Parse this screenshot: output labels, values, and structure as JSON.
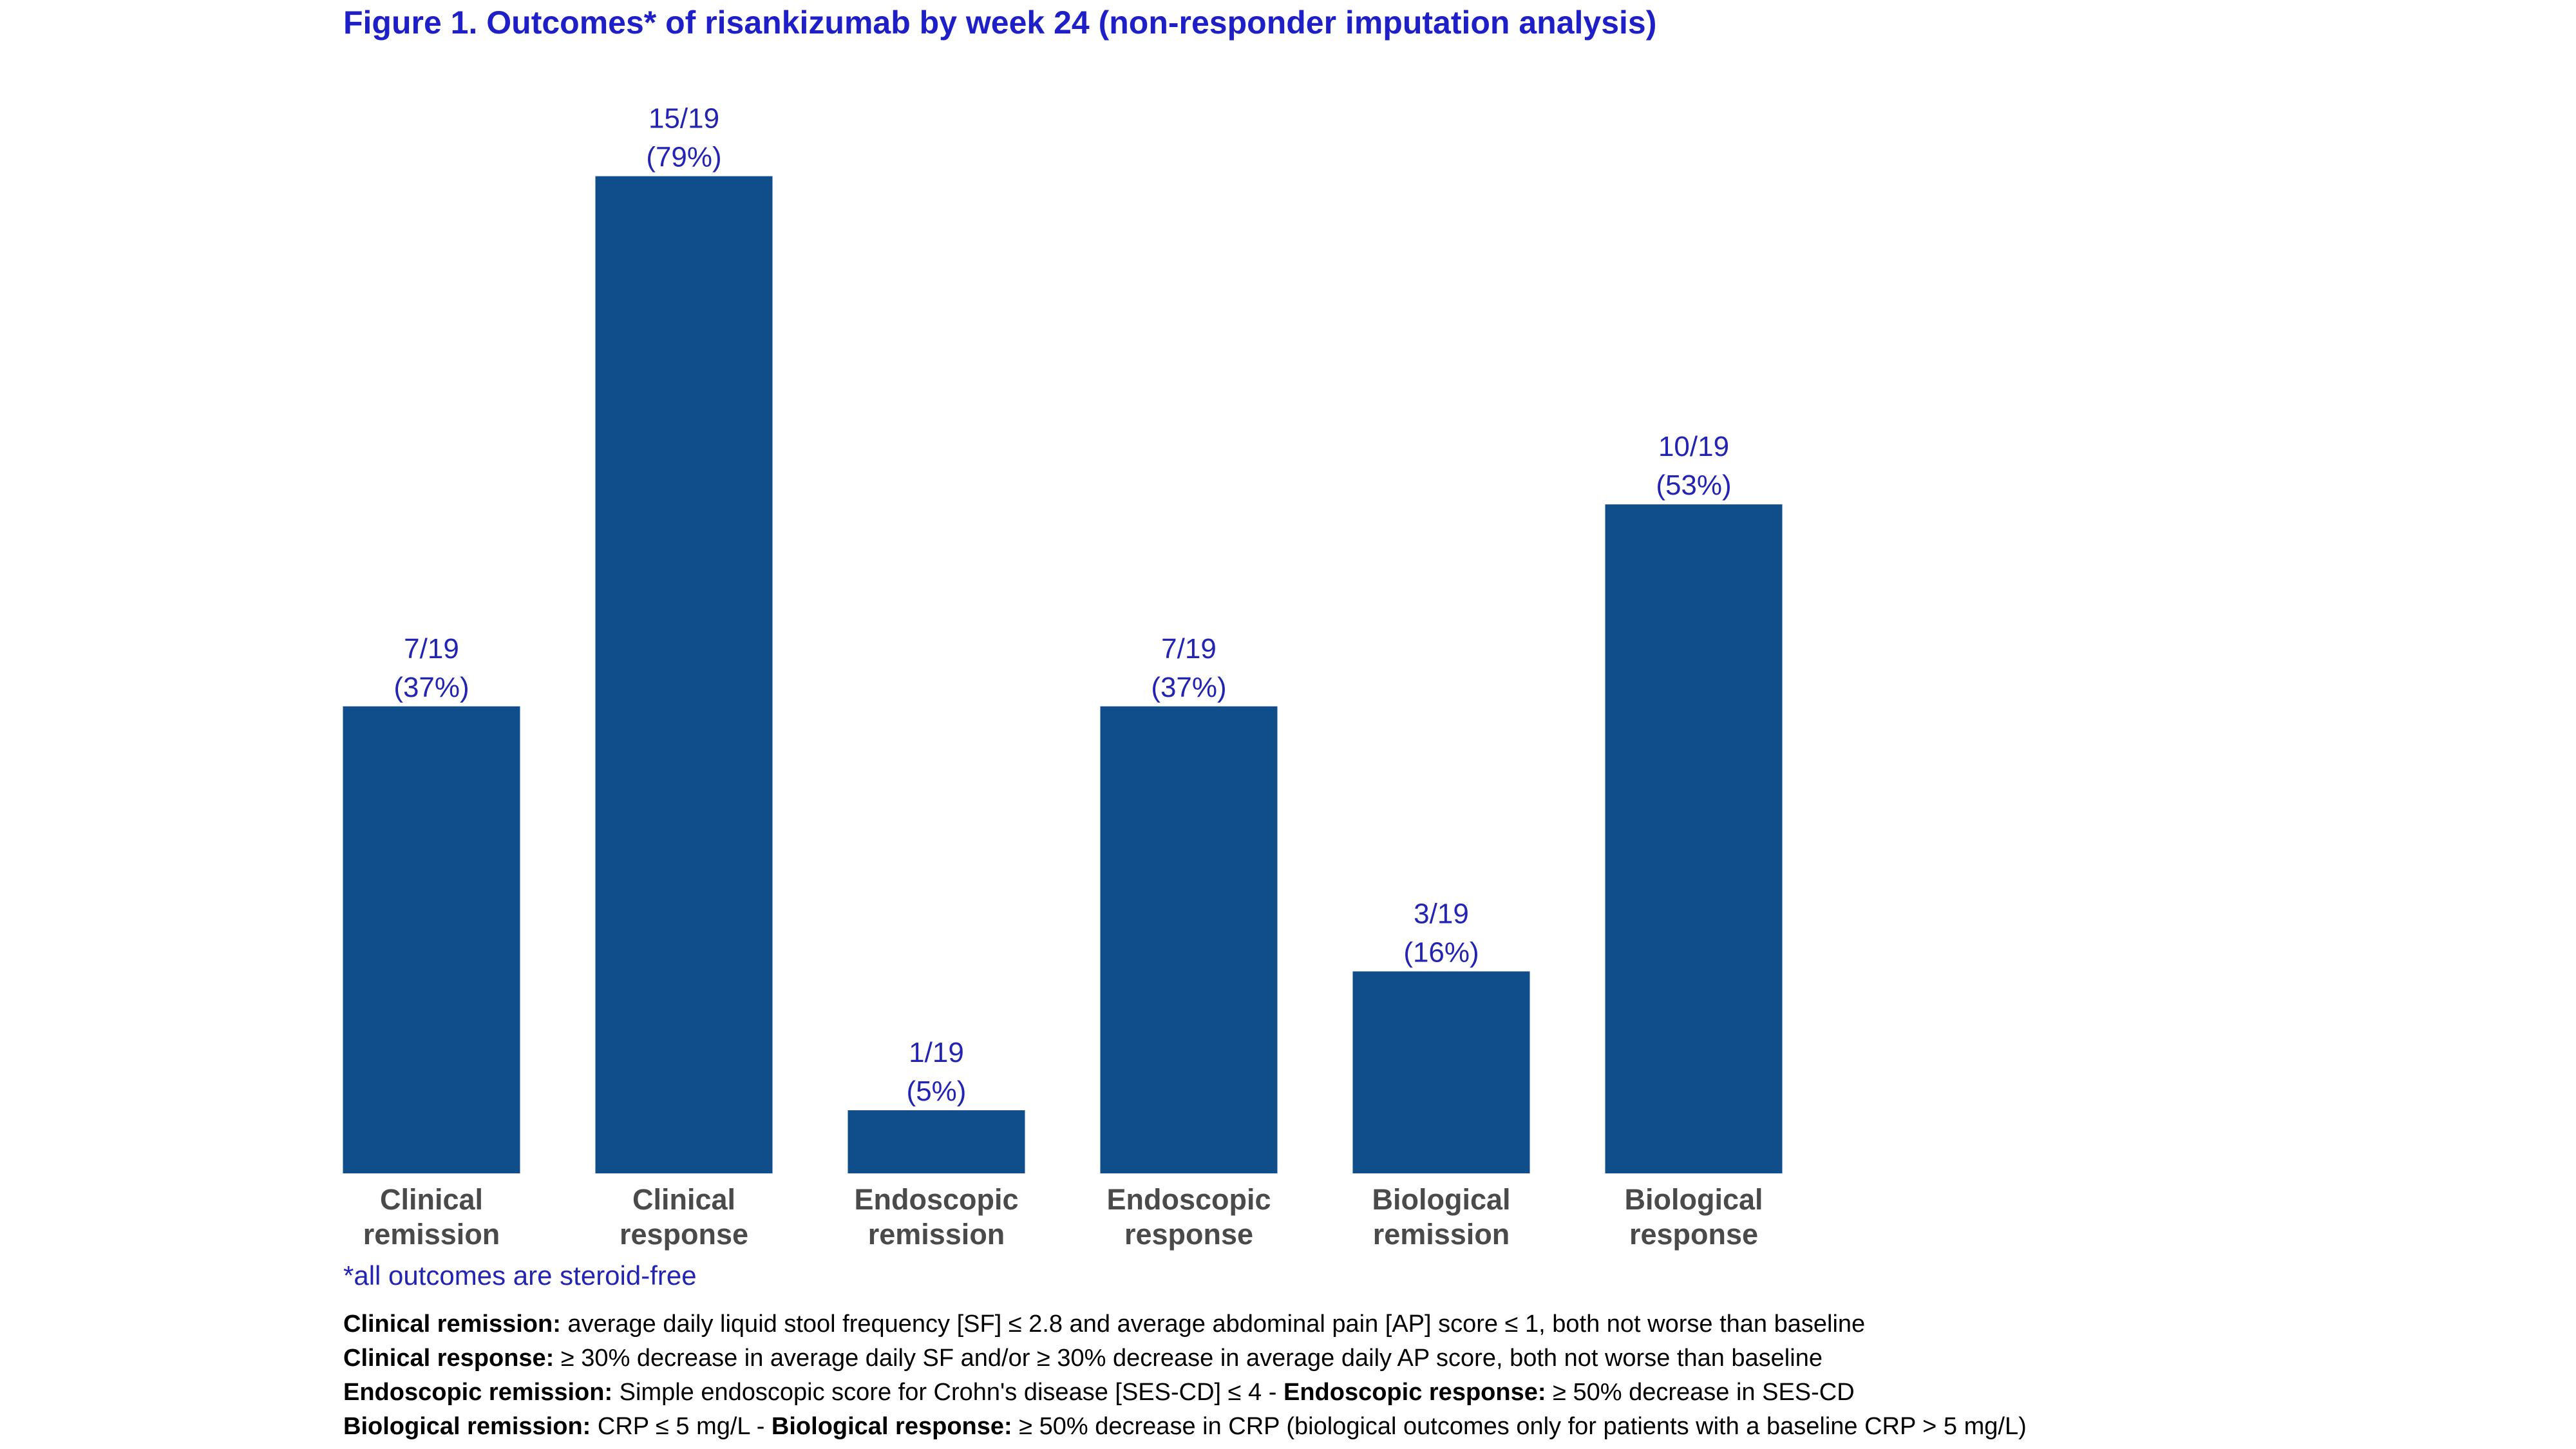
{
  "title": "Figure 1. Outcomes* of risankizumab by week 24 (non-responder imputation analysis)",
  "chart_data": {
    "type": "bar",
    "title": "Figure 1. Outcomes* of risankizumab by week 24 (non-responder imputation analysis)",
    "categories": [
      [
        "Clinical",
        "remission"
      ],
      [
        "Clinical",
        "response"
      ],
      [
        "Endoscopic",
        "remission"
      ],
      [
        "Endoscopic",
        "response"
      ],
      [
        "Biological",
        "remission"
      ],
      [
        "Biological",
        "response"
      ]
    ],
    "values": [
      37,
      79,
      5,
      37,
      16,
      53
    ],
    "data_labels": [
      [
        "7/19",
        "(37%)"
      ],
      [
        "15/19",
        "(79%)"
      ],
      [
        "1/19",
        "(5%)"
      ],
      [
        "7/19",
        "(37%)"
      ],
      [
        "3/19",
        "(16%)"
      ],
      [
        "10/19",
        "(53%)"
      ]
    ],
    "ylim": [
      0,
      100
    ],
    "xlabel": "",
    "ylabel": "",
    "grid": false,
    "legend": "none",
    "bar_color": "#0f4e8b",
    "label_color": "#2323b4"
  },
  "footnote": "*all outcomes are steroid-free",
  "definitions": [
    [
      {
        "label": "Clinical remission:",
        "text": " average daily liquid stool frequency [SF] ≤ 2.8 and average abdominal pain [AP] score ≤ 1, both not worse than baseline"
      }
    ],
    [
      {
        "label": "Clinical response:",
        "text": " ≥ 30% decrease in average daily SF and/or ≥ 30% decrease in average daily AP score, both not worse than baseline"
      }
    ],
    [
      {
        "label": "Endoscopic remission:",
        "text": " Simple endoscopic score for Crohn's disease [SES-CD] ≤ 4 - "
      },
      {
        "label": "Endoscopic response:",
        "text": " ≥ 50% decrease in SES-CD"
      }
    ],
    [
      {
        "label": "Biological remission:",
        "text": " CRP ≤ 5 mg/L - "
      },
      {
        "label": "Biological response:",
        "text": " ≥ 50% decrease in CRP (biological outcomes only for patients with a baseline CRP > 5 mg/L)"
      }
    ]
  ]
}
